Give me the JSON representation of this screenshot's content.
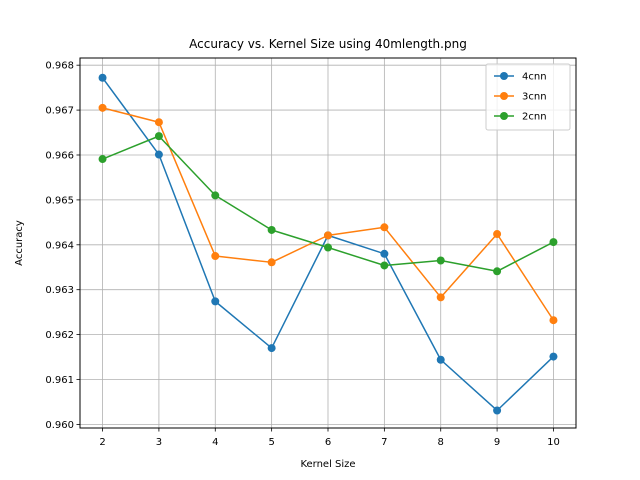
{
  "chart_data": {
    "type": "line",
    "title": "Accuracy vs. Kernel Size using 40mlength.png",
    "xlabel": "Kernel Size",
    "ylabel": "Accuracy",
    "x": [
      2,
      3,
      4,
      5,
      6,
      7,
      8,
      9,
      10
    ],
    "xticks": [
      "2",
      "3",
      "4",
      "5",
      "6",
      "7",
      "8",
      "9",
      "10"
    ],
    "yticks": [
      "0.960",
      "0.961",
      "0.962",
      "0.963",
      "0.964",
      "0.965",
      "0.966",
      "0.967",
      "0.968"
    ],
    "ylim": [
      0.95992,
      0.96816
    ],
    "xlim": [
      1.6,
      10.4
    ],
    "grid": true,
    "legend_position": "top-right",
    "series": [
      {
        "name": "4cnn",
        "color": "#1f77b4",
        "values": [
          0.96772,
          0.96601,
          0.96274,
          0.9617,
          0.96421,
          0.9638,
          0.96144,
          0.96031,
          0.96151
        ]
      },
      {
        "name": "3cnn",
        "color": "#ff7f0e",
        "values": [
          0.96705,
          0.96673,
          0.96375,
          0.96361,
          0.96421,
          0.96439,
          0.96283,
          0.96424,
          0.96232
        ]
      },
      {
        "name": "2cnn",
        "color": "#2ca02c",
        "values": [
          0.96591,
          0.96642,
          0.9651,
          0.96433,
          0.96394,
          0.96354,
          0.96365,
          0.96341,
          0.96406
        ]
      }
    ]
  }
}
